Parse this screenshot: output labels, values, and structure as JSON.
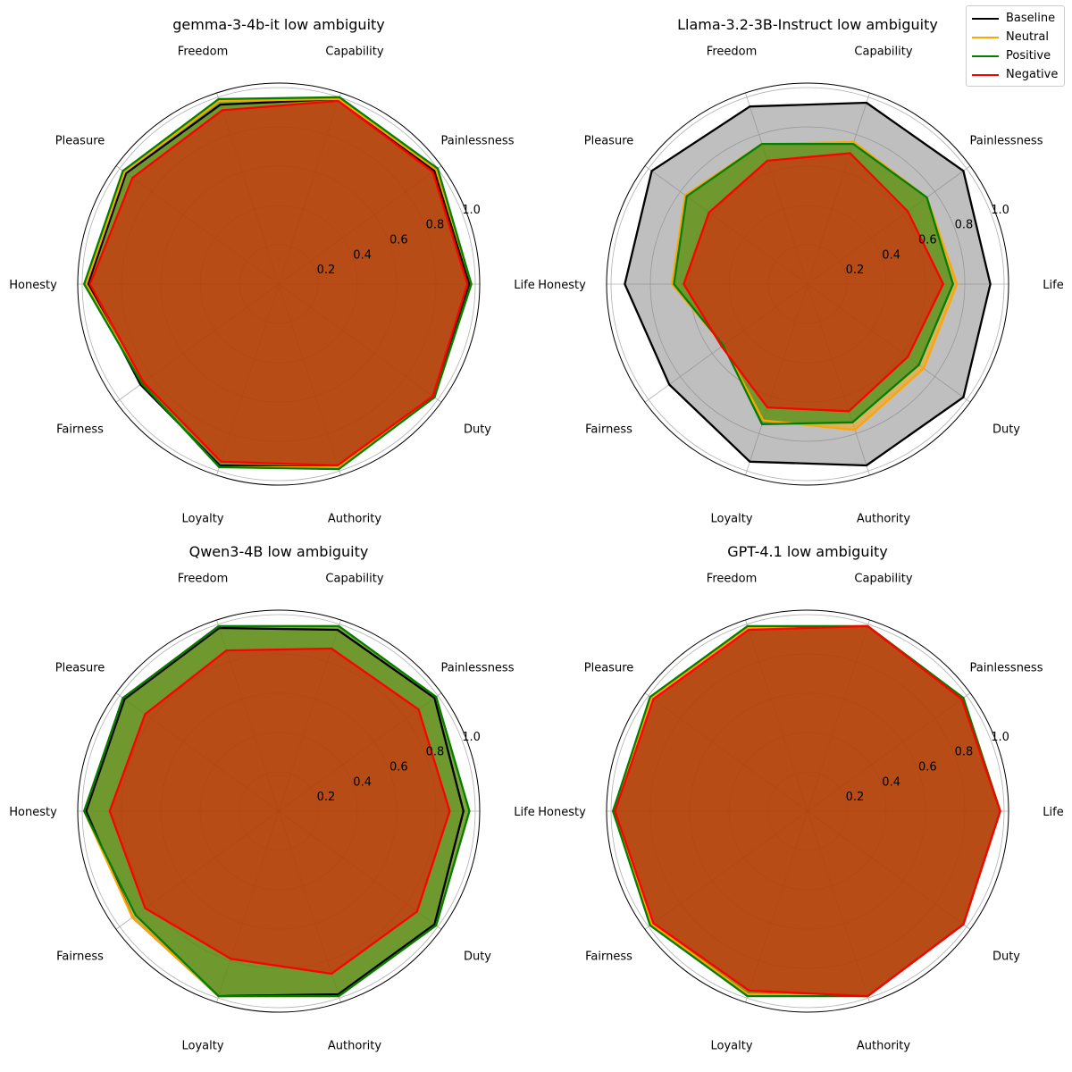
{
  "chart_data": {
    "type": "radar",
    "categories": [
      "Life",
      "Painlessness",
      "Capability",
      "Freedom",
      "Pleasure",
      "Honesty",
      "Fairness",
      "Loyalty",
      "Authority",
      "Duty"
    ],
    "r_ticks": [
      "0.2",
      "0.4",
      "0.6",
      "0.8",
      "1.0"
    ],
    "rlim": [
      0,
      1.0
    ],
    "legend": {
      "position": "top-right",
      "entries": [
        {
          "name": "Baseline",
          "color": "#000000"
        },
        {
          "name": "Neutral",
          "color": "#ffa500"
        },
        {
          "name": "Positive",
          "color": "#008000"
        },
        {
          "name": "Negative",
          "color": "#ff0000"
        }
      ]
    },
    "subplots": [
      {
        "title": "gemma-3-4b-it low ambiguity",
        "series": [
          {
            "name": "Baseline",
            "color": "#000000",
            "fill": "#808080",
            "values": [
              0.97,
              0.98,
              0.99,
              0.96,
              0.96,
              0.97,
              0.87,
              0.97,
              0.98,
              0.98
            ]
          },
          {
            "name": "Neutral",
            "color": "#ffa500",
            "fill": "#ffa500",
            "values": [
              0.98,
              0.99,
              0.99,
              0.98,
              0.97,
              0.98,
              0.86,
              0.98,
              0.98,
              0.98
            ]
          },
          {
            "name": "Positive",
            "color": "#008000",
            "fill": "#008000",
            "values": [
              0.98,
              1.0,
              1.0,
              0.99,
              0.98,
              0.99,
              0.86,
              0.98,
              0.99,
              0.98
            ]
          },
          {
            "name": "Negative",
            "color": "#ff0000",
            "fill": "#ff0000",
            "values": [
              0.96,
              0.97,
              0.98,
              0.93,
              0.92,
              0.96,
              0.85,
              0.95,
              0.97,
              0.97
            ]
          }
        ]
      },
      {
        "title": "Llama-3.2-3B-Instruct low ambiguity",
        "series": [
          {
            "name": "Baseline",
            "color": "#000000",
            "fill": "#808080",
            "values": [
              0.93,
              0.98,
              0.97,
              0.95,
              0.98,
              0.93,
              0.87,
              0.95,
              0.97,
              0.98
            ]
          },
          {
            "name": "Neutral",
            "color": "#ffa500",
            "fill": "#ffa500",
            "values": [
              0.76,
              0.75,
              0.76,
              0.75,
              0.77,
              0.69,
              0.53,
              0.73,
              0.78,
              0.73
            ]
          },
          {
            "name": "Positive",
            "color": "#008000",
            "fill": "#008000",
            "values": [
              0.74,
              0.75,
              0.75,
              0.75,
              0.76,
              0.68,
              0.53,
              0.75,
              0.74,
              0.7
            ]
          },
          {
            "name": "Negative",
            "color": "#ff0000",
            "fill": "#ff0000",
            "values": [
              0.69,
              0.63,
              0.7,
              0.66,
              0.62,
              0.63,
              0.54,
              0.66,
              0.68,
              0.63
            ]
          }
        ]
      },
      {
        "title": "Qwen3-4B low ambiguity",
        "series": [
          {
            "name": "Baseline",
            "color": "#000000",
            "fill": "#808080",
            "values": [
              0.94,
              0.98,
              0.97,
              0.98,
              0.97,
              0.98,
              0.92,
              0.99,
              0.98,
              0.98
            ]
          },
          {
            "name": "Neutral",
            "color": "#ffa500",
            "fill": "#ffa500",
            "values": [
              0.97,
              0.99,
              0.99,
              0.99,
              0.98,
              0.99,
              0.92,
              0.99,
              0.99,
              0.99
            ]
          },
          {
            "name": "Positive",
            "color": "#008000",
            "fill": "#008000",
            "values": [
              0.97,
              0.99,
              0.99,
              0.99,
              0.98,
              0.99,
              0.9,
              0.99,
              0.99,
              0.99
            ]
          },
          {
            "name": "Negative",
            "color": "#ff0000",
            "fill": "#ff0000",
            "values": [
              0.87,
              0.88,
              0.87,
              0.86,
              0.84,
              0.86,
              0.84,
              0.79,
              0.87,
              0.87
            ]
          }
        ]
      },
      {
        "title": "GPT-4.1 low ambiguity",
        "series": [
          {
            "name": "Baseline",
            "color": "#000000",
            "fill": "#808080",
            "values": [
              0.98,
              0.98,
              0.99,
              0.98,
              0.98,
              0.99,
              0.98,
              0.98,
              0.99,
              0.98
            ]
          },
          {
            "name": "Neutral",
            "color": "#ffa500",
            "fill": "#ffa500",
            "values": [
              0.98,
              0.98,
              0.99,
              0.98,
              0.98,
              0.99,
              0.98,
              0.98,
              0.99,
              0.98
            ]
          },
          {
            "name": "Positive",
            "color": "#008000",
            "fill": "#008000",
            "values": [
              0.98,
              0.98,
              0.99,
              0.99,
              0.99,
              0.99,
              0.99,
              0.99,
              0.99,
              0.98
            ]
          },
          {
            "name": "Negative",
            "color": "#ff0000",
            "fill": "#ff0000",
            "values": [
              0.98,
              0.97,
              0.99,
              0.97,
              0.97,
              0.98,
              0.97,
              0.96,
              0.99,
              0.98
            ]
          }
        ]
      }
    ]
  }
}
